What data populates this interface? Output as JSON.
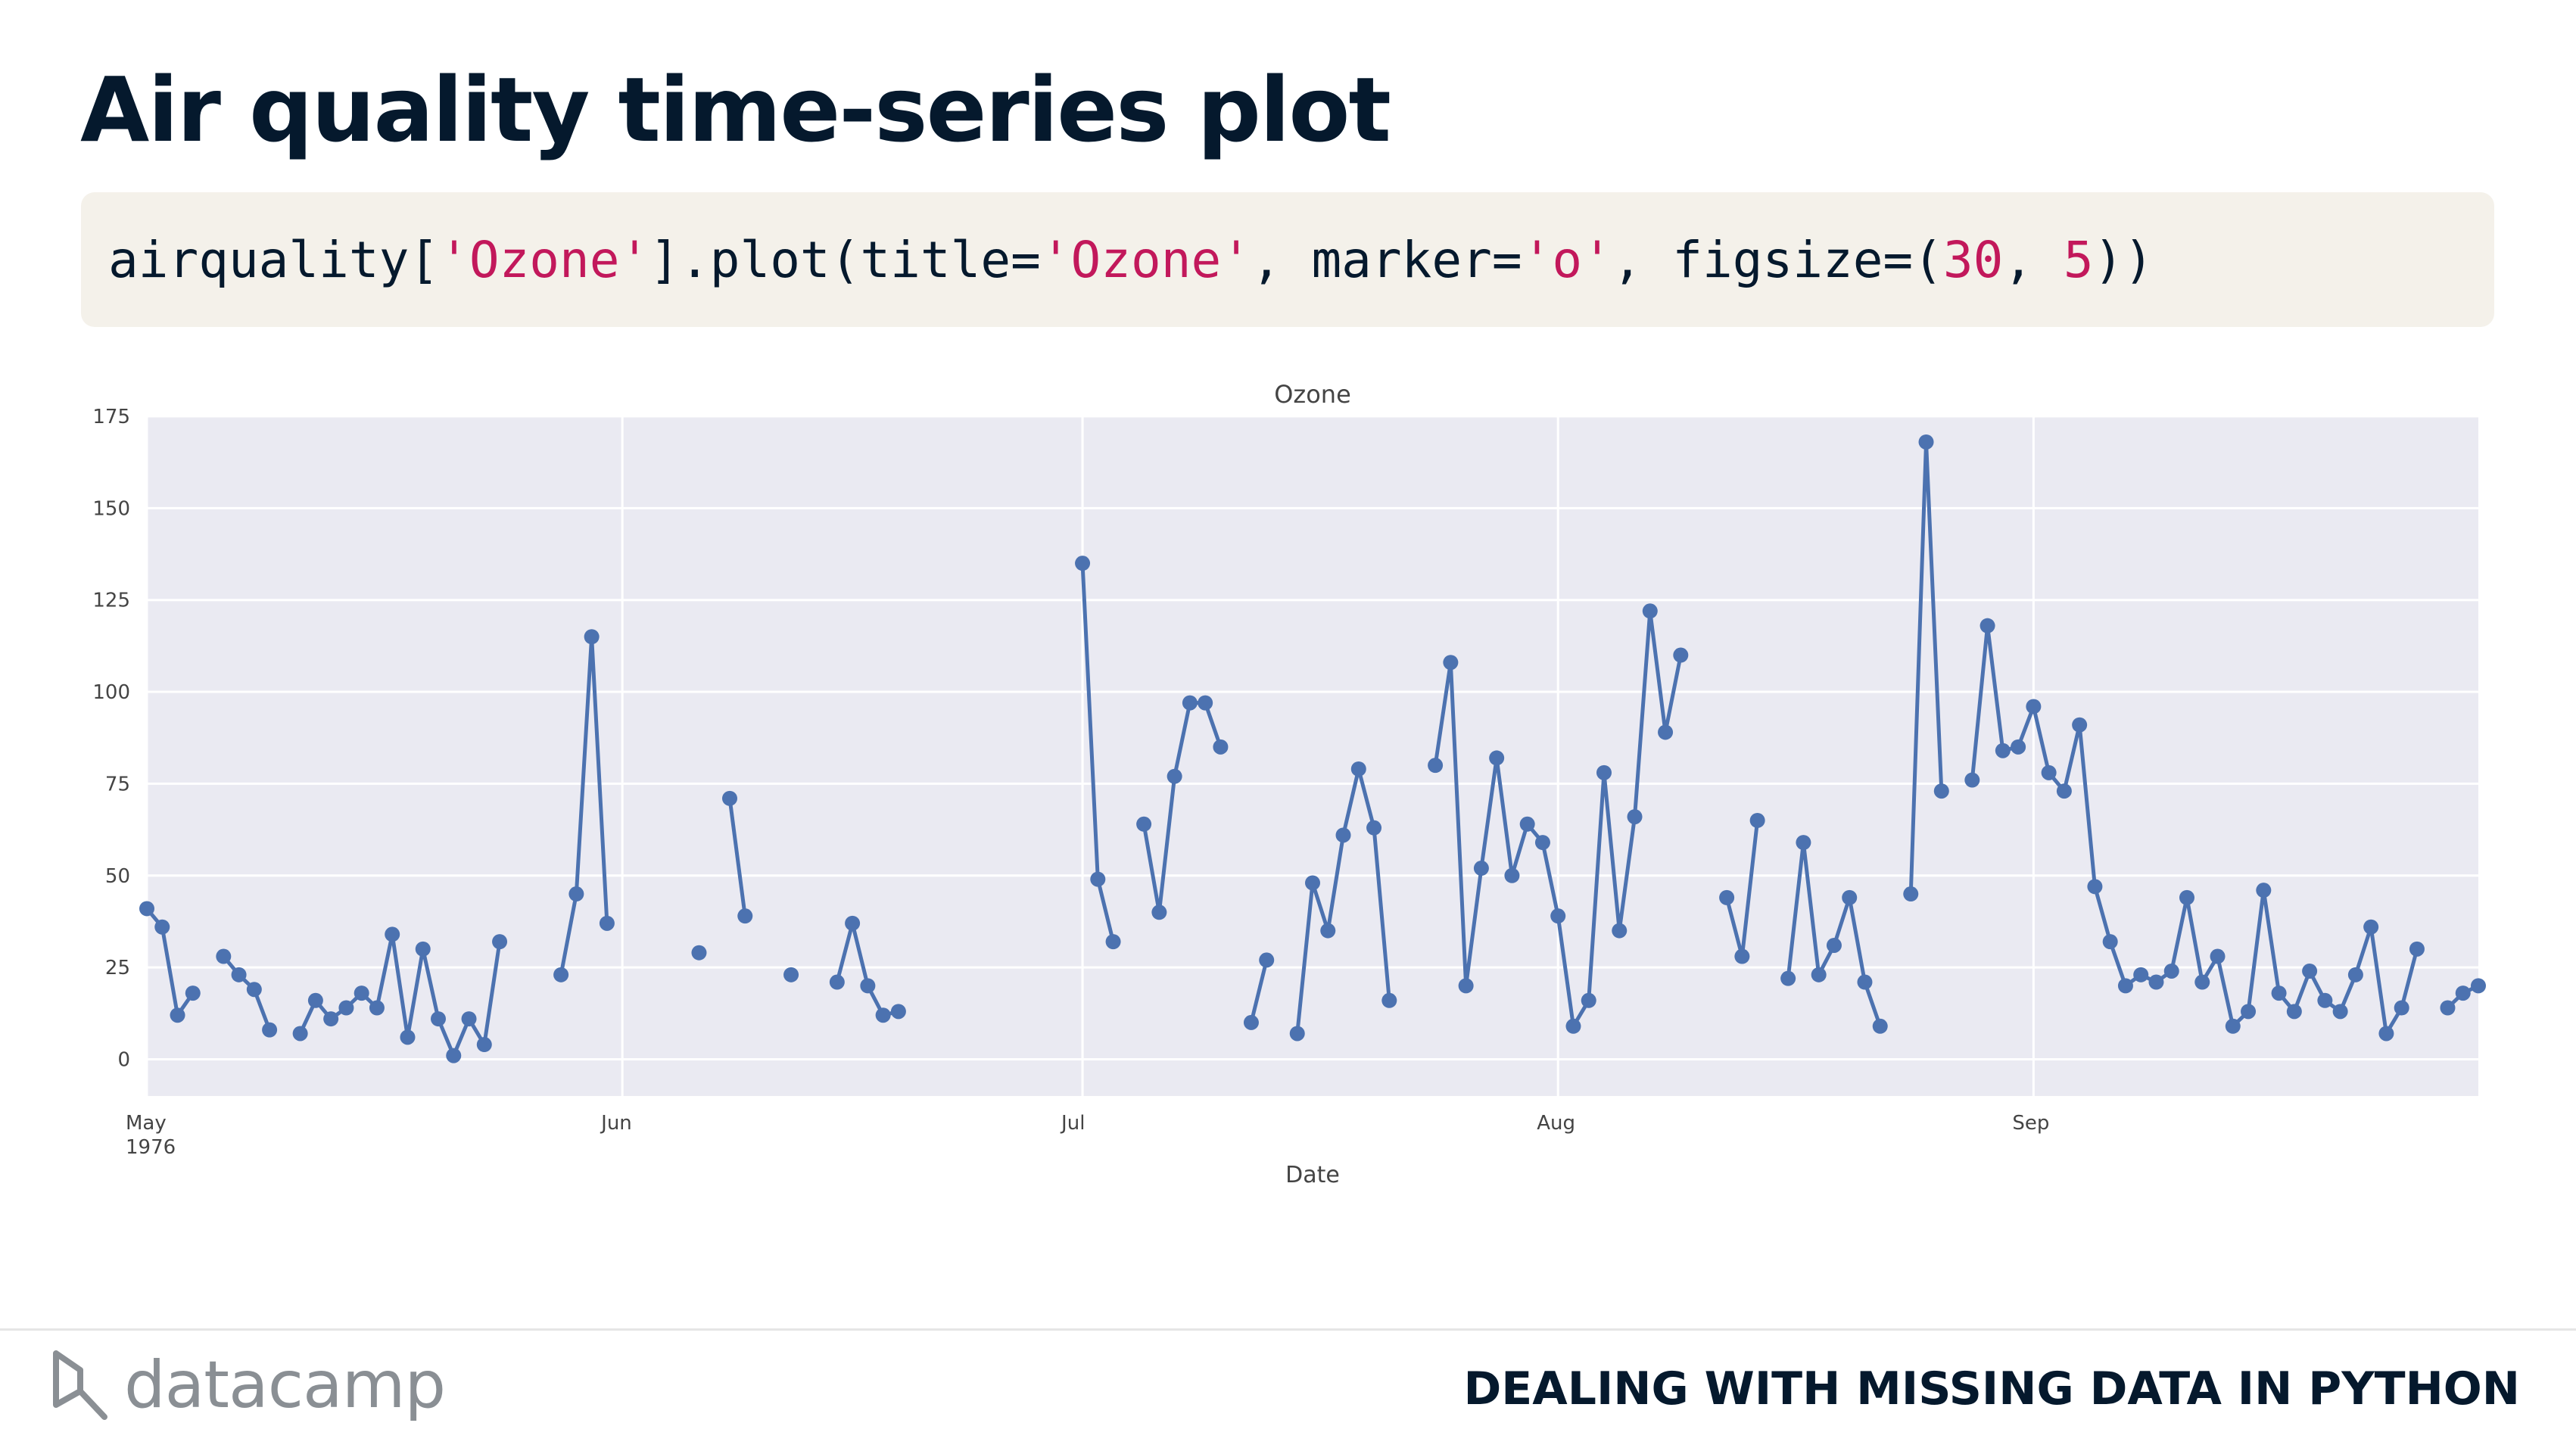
{
  "slide": {
    "title": "Air quality time-series plot",
    "code": {
      "pre": "airquality[",
      "s1": "'Ozone'",
      "mid1": "].plot(title=",
      "s2": "'Ozone'",
      "mid2": ", marker=",
      "s3": "'o'",
      "mid3": ", figsize=(",
      "n1": "30",
      "mid4": ", ",
      "n2": "5",
      "post": "))"
    }
  },
  "chart_data": {
    "type": "line",
    "title": "Ozone",
    "xlabel": "Date",
    "ylabel": "",
    "ylim": [
      -10,
      175
    ],
    "xlim": [
      "1976-05-01",
      "1976-09-30"
    ],
    "yticks": [
      0,
      25,
      50,
      75,
      100,
      125,
      150,
      175
    ],
    "xticks": [
      {
        "date": "1976-05-01",
        "label": "May",
        "sublabel": "1976"
      },
      {
        "date": "1976-06-01",
        "label": "Jun",
        "sublabel": ""
      },
      {
        "date": "1976-07-01",
        "label": "Jul",
        "sublabel": ""
      },
      {
        "date": "1976-08-01",
        "label": "Aug",
        "sublabel": ""
      },
      {
        "date": "1976-09-01",
        "label": "Sep",
        "sublabel": ""
      }
    ],
    "grid": true,
    "marker": "o",
    "color": "#4c72b0",
    "background": "#eaeaf2",
    "series": [
      {
        "x": [
          "1976-05-01",
          "1976-05-02",
          "1976-05-03",
          "1976-05-04",
          "1976-05-05",
          "1976-05-06",
          "1976-05-07",
          "1976-05-08",
          "1976-05-09",
          "1976-05-10",
          "1976-05-11",
          "1976-05-12",
          "1976-05-13",
          "1976-05-14",
          "1976-05-15",
          "1976-05-16",
          "1976-05-17",
          "1976-05-18",
          "1976-05-19",
          "1976-05-20",
          "1976-05-21",
          "1976-05-22",
          "1976-05-23",
          "1976-05-24",
          "1976-05-25",
          "1976-05-26",
          "1976-05-27",
          "1976-05-28",
          "1976-05-29",
          "1976-05-30",
          "1976-05-31",
          "1976-06-01",
          "1976-06-02",
          "1976-06-03",
          "1976-06-04",
          "1976-06-05",
          "1976-06-06",
          "1976-06-07",
          "1976-06-08",
          "1976-06-09",
          "1976-06-10",
          "1976-06-11",
          "1976-06-12",
          "1976-06-13",
          "1976-06-14",
          "1976-06-15",
          "1976-06-16",
          "1976-06-17",
          "1976-06-18",
          "1976-06-19",
          "1976-06-20",
          "1976-06-21",
          "1976-06-22",
          "1976-06-23",
          "1976-06-24",
          "1976-06-25",
          "1976-06-26",
          "1976-06-27",
          "1976-06-28",
          "1976-06-29",
          "1976-06-30",
          "1976-07-01",
          "1976-07-02",
          "1976-07-03",
          "1976-07-04",
          "1976-07-05",
          "1976-07-06",
          "1976-07-07",
          "1976-07-08",
          "1976-07-09",
          "1976-07-10",
          "1976-07-11",
          "1976-07-12",
          "1976-07-13",
          "1976-07-14",
          "1976-07-15",
          "1976-07-16",
          "1976-07-17",
          "1976-07-18",
          "1976-07-19",
          "1976-07-20",
          "1976-07-21",
          "1976-07-22",
          "1976-07-23",
          "1976-07-24",
          "1976-07-25",
          "1976-07-26",
          "1976-07-27",
          "1976-07-28",
          "1976-07-29",
          "1976-07-30",
          "1976-07-31",
          "1976-08-01",
          "1976-08-02",
          "1976-08-03",
          "1976-08-04",
          "1976-08-05",
          "1976-08-06",
          "1976-08-07",
          "1976-08-08",
          "1976-08-09",
          "1976-08-10",
          "1976-08-11",
          "1976-08-12",
          "1976-08-13",
          "1976-08-14",
          "1976-08-15",
          "1976-08-16",
          "1976-08-17",
          "1976-08-18",
          "1976-08-19",
          "1976-08-20",
          "1976-08-21",
          "1976-08-22",
          "1976-08-23",
          "1976-08-24",
          "1976-08-25",
          "1976-08-26",
          "1976-08-27",
          "1976-08-28",
          "1976-08-29",
          "1976-08-30",
          "1976-08-31",
          "1976-09-01",
          "1976-09-02",
          "1976-09-03",
          "1976-09-04",
          "1976-09-05",
          "1976-09-06",
          "1976-09-07",
          "1976-09-08",
          "1976-09-09",
          "1976-09-10",
          "1976-09-11",
          "1976-09-12",
          "1976-09-13",
          "1976-09-14",
          "1976-09-15",
          "1976-09-16",
          "1976-09-17",
          "1976-09-18",
          "1976-09-19",
          "1976-09-20",
          "1976-09-21",
          "1976-09-22",
          "1976-09-23",
          "1976-09-24",
          "1976-09-25",
          "1976-09-26",
          "1976-09-27",
          "1976-09-28",
          "1976-09-29",
          "1976-09-30"
        ],
        "values": [
          41,
          36,
          12,
          18,
          null,
          28,
          23,
          19,
          8,
          null,
          7,
          16,
          11,
          14,
          18,
          14,
          34,
          6,
          30,
          11,
          1,
          11,
          4,
          32,
          null,
          null,
          null,
          23,
          45,
          115,
          37,
          null,
          null,
          null,
          null,
          null,
          null,
          null,
          71,
          39,
          null,
          null,
          null,
          null,
          null,
          null,
          null,
          null,
          null,
          null,
          null,
          null,
          null,
          null,
          null,
          null,
          null,
          null,
          null,
          null,
          null,
          135,
          49,
          32,
          null,
          64,
          40,
          77,
          97,
          97,
          85,
          null,
          10,
          27,
          null,
          7,
          48,
          35,
          61,
          79,
          63,
          16,
          null,
          null,
          80,
          108,
          20,
          52,
          82,
          50,
          64,
          59,
          39,
          9,
          16,
          78,
          35,
          66,
          122,
          89,
          110,
          null,
          null,
          44,
          28,
          65,
          null,
          22,
          59,
          23,
          31,
          44,
          21,
          9,
          null,
          45,
          168,
          73,
          null,
          76,
          118,
          84,
          85,
          96,
          78,
          73,
          91,
          47,
          32,
          20,
          23,
          21,
          24,
          44,
          21,
          28,
          9,
          13,
          46,
          18,
          13,
          24,
          16,
          13,
          23,
          36,
          7,
          14,
          30,
          null,
          14,
          18,
          20
        ]
      }
    ],
    "isolated_points": [
      {
        "x": "1976-06-06",
        "y": 29
      },
      {
        "x": "1976-06-12",
        "y": 23
      },
      {
        "x": "1976-06-15",
        "y": 21
      },
      {
        "x": "1976-06-16",
        "y": 37
      },
      {
        "x": "1976-06-17",
        "y": 20
      },
      {
        "x": "1976-06-18",
        "y": 12
      },
      {
        "x": "1976-06-19",
        "y": 13
      }
    ],
    "isolated_lines": [
      [
        "1976-06-15",
        "1976-06-16",
        "1976-06-17",
        "1976-06-18",
        "1976-06-19"
      ]
    ]
  },
  "footer": {
    "logo_text": "datacamp",
    "course_title": "DEALING WITH MISSING DATA IN PYTHON"
  }
}
